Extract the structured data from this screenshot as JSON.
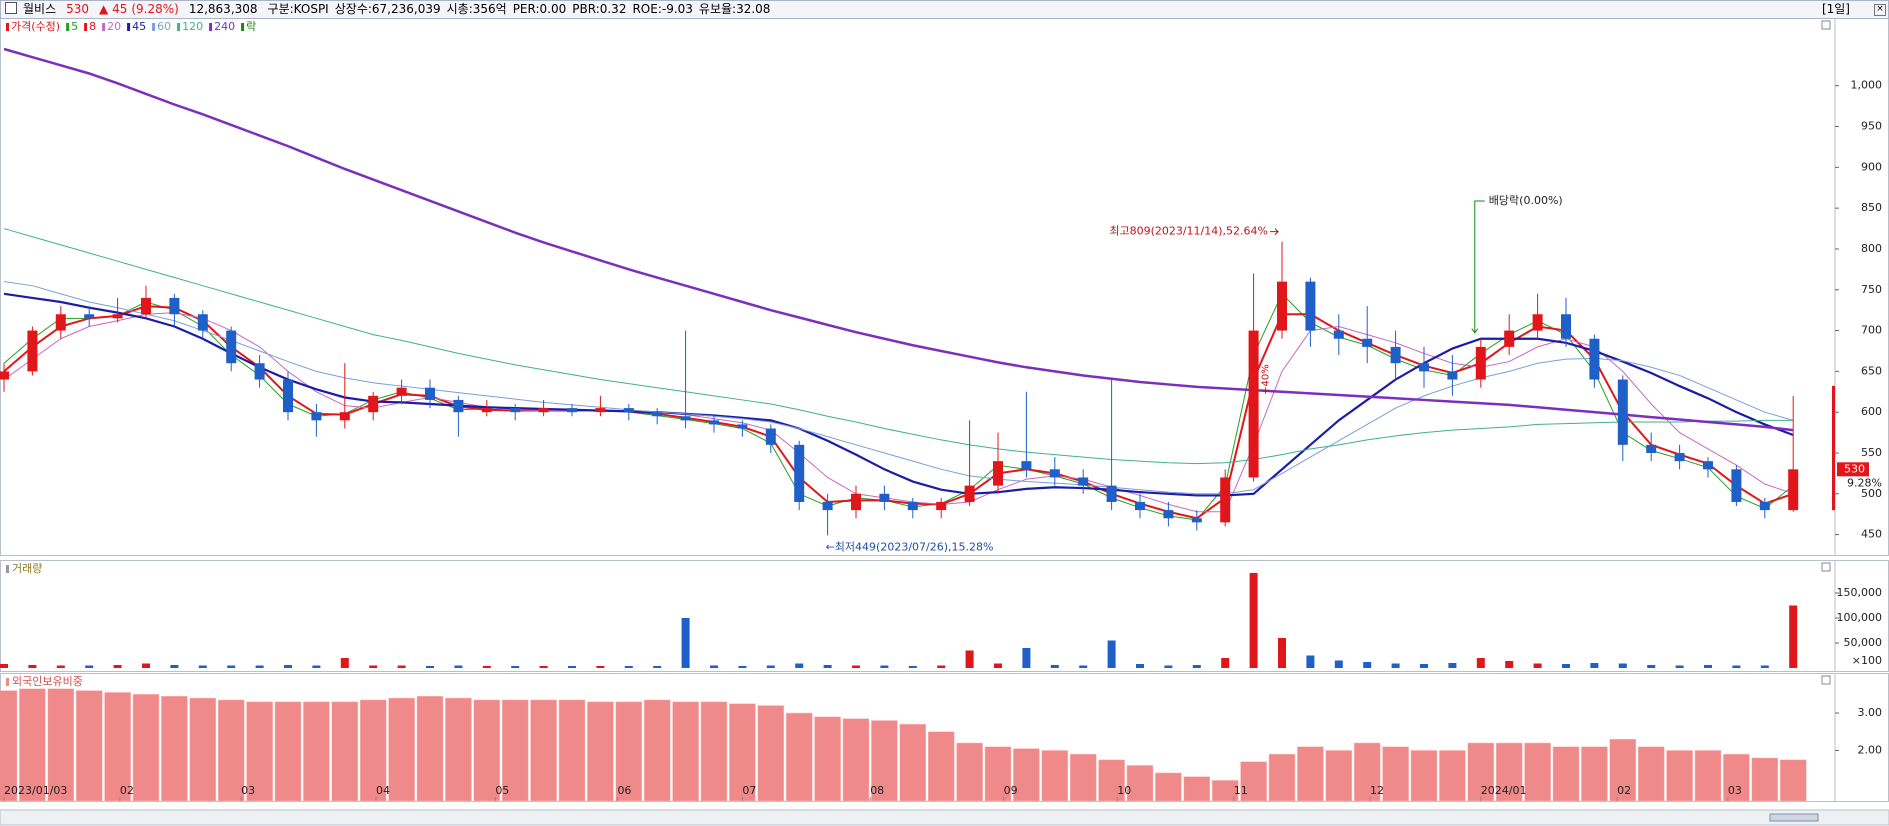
{
  "header": {
    "name": "월비스",
    "price": "530",
    "change": "▲ 45",
    "rate": "(9.28%)",
    "volume": "12,863,308",
    "fields": [
      "구분:KOSPI",
      "상장수:67,236,039",
      "시총:356억",
      "PER:0.00",
      "PBR:0.32",
      "ROE:-9.03",
      "유보율:32.08"
    ],
    "period": "[1일]"
  },
  "chart_data": [
    {
      "type": "candlestick",
      "legend_title": "가격(수정)",
      "up_color": "#e0161b",
      "down_color": "#1f5fc8",
      "ohlc": [
        [
          640,
          660,
          625,
          650
        ],
        [
          650,
          705,
          645,
          700
        ],
        [
          700,
          730,
          690,
          720
        ],
        [
          720,
          730,
          705,
          715
        ],
        [
          715,
          740,
          710,
          720
        ],
        [
          720,
          755,
          715,
          740
        ],
        [
          740,
          745,
          705,
          720
        ],
        [
          720,
          725,
          690,
          700
        ],
        [
          700,
          705,
          650,
          660
        ],
        [
          660,
          670,
          630,
          640
        ],
        [
          640,
          650,
          590,
          600
        ],
        [
          600,
          610,
          570,
          590
        ],
        [
          590,
          660,
          580,
          600
        ],
        [
          600,
          625,
          590,
          620
        ],
        [
          620,
          640,
          610,
          630
        ],
        [
          630,
          640,
          605,
          615
        ],
        [
          615,
          620,
          570,
          600
        ],
        [
          600,
          615,
          595,
          605
        ],
        [
          605,
          610,
          590,
          600
        ],
        [
          600,
          615,
          595,
          605
        ],
        [
          605,
          610,
          595,
          600
        ],
        [
          600,
          620,
          595,
          605
        ],
        [
          605,
          610,
          590,
          600
        ],
        [
          600,
          605,
          585,
          595
        ],
        [
          595,
          700,
          580,
          590
        ],
        [
          590,
          595,
          575,
          585
        ],
        [
          585,
          590,
          570,
          580
        ],
        [
          580,
          585,
          550,
          560
        ],
        [
          560,
          565,
          480,
          490
        ],
        [
          490,
          500,
          449,
          480
        ],
        [
          480,
          510,
          470,
          500
        ],
        [
          500,
          510,
          480,
          490
        ],
        [
          490,
          495,
          470,
          480
        ],
        [
          480,
          495,
          470,
          490
        ],
        [
          490,
          590,
          485,
          510
        ],
        [
          510,
          575,
          500,
          540
        ],
        [
          540,
          625,
          520,
          530
        ],
        [
          530,
          545,
          510,
          520
        ],
        [
          520,
          530,
          500,
          510
        ],
        [
          510,
          640,
          480,
          490
        ],
        [
          490,
          500,
          470,
          480
        ],
        [
          480,
          490,
          460,
          470
        ],
        [
          470,
          480,
          455,
          465
        ],
        [
          465,
          530,
          460,
          520
        ],
        [
          520,
          770,
          515,
          700
        ],
        [
          700,
          809,
          690,
          760
        ],
        [
          760,
          765,
          680,
          700
        ],
        [
          700,
          720,
          670,
          690
        ],
        [
          690,
          730,
          660,
          680
        ],
        [
          680,
          700,
          640,
          660
        ],
        [
          660,
          680,
          630,
          650
        ],
        [
          650,
          670,
          620,
          640
        ],
        [
          640,
          690,
          630,
          680
        ],
        [
          680,
          720,
          670,
          700
        ],
        [
          700,
          745,
          690,
          720
        ],
        [
          720,
          740,
          680,
          690
        ],
        [
          690,
          695,
          630,
          640
        ],
        [
          640,
          645,
          540,
          560
        ],
        [
          560,
          575,
          540,
          550
        ],
        [
          550,
          560,
          530,
          540
        ],
        [
          540,
          545,
          520,
          530
        ],
        [
          530,
          535,
          485,
          490
        ],
        [
          490,
          495,
          470,
          480
        ],
        [
          480,
          620,
          478,
          530
        ]
      ],
      "series": [
        {
          "name": "5",
          "color": "#22a022",
          "width": 1,
          "values": [
            660,
            690,
            715,
            715,
            718,
            735,
            725,
            705,
            670,
            645,
            610,
            595,
            598,
            615,
            625,
            617,
            603,
            604,
            601,
            603,
            601,
            603,
            600,
            596,
            591,
            586,
            580,
            562,
            500,
            485,
            495,
            492,
            484,
            488,
            505,
            535,
            530,
            522,
            512,
            495,
            483,
            473,
            468,
            510,
            670,
            745,
            710,
            692,
            682,
            665,
            652,
            645,
            672,
            695,
            712,
            695,
            650,
            575,
            553,
            543,
            532,
            497,
            482,
            510
          ]
        },
        {
          "name": "8",
          "color": "#e0161b",
          "width": 2,
          "values": [
            650,
            680,
            705,
            715,
            718,
            730,
            728,
            712,
            680,
            655,
            620,
            598,
            597,
            610,
            622,
            620,
            607,
            603,
            602,
            602,
            602,
            602,
            601,
            598,
            593,
            588,
            582,
            570,
            520,
            490,
            492,
            492,
            488,
            487,
            500,
            525,
            530,
            525,
            515,
            500,
            488,
            478,
            470,
            495,
            640,
            720,
            720,
            700,
            685,
            670,
            657,
            648,
            660,
            685,
            705,
            700,
            665,
            600,
            560,
            548,
            537,
            510,
            488,
            500
          ]
        },
        {
          "name": "20",
          "color": "#c868c0",
          "width": 1,
          "values": [
            640,
            665,
            690,
            705,
            712,
            720,
            722,
            715,
            700,
            680,
            650,
            625,
            608,
            605,
            612,
            618,
            612,
            606,
            603,
            602,
            602,
            601,
            601,
            600,
            597,
            592,
            587,
            578,
            550,
            520,
            500,
            495,
            490,
            487,
            490,
            505,
            518,
            522,
            518,
            508,
            498,
            487,
            478,
            478,
            560,
            650,
            700,
            705,
            695,
            685,
            672,
            660,
            655,
            662,
            680,
            690,
            680,
            650,
            610,
            575,
            555,
            535,
            512,
            500
          ]
        },
        {
          "name": "45",
          "color": "#1c1ca8",
          "width": 2.2,
          "values": [
            745,
            740,
            735,
            728,
            722,
            715,
            705,
            690,
            672,
            655,
            640,
            628,
            618,
            613,
            612,
            610,
            608,
            606,
            605,
            604,
            603,
            602,
            601,
            600,
            598,
            596,
            593,
            590,
            580,
            565,
            548,
            530,
            515,
            505,
            500,
            502,
            506,
            508,
            507,
            505,
            502,
            500,
            498,
            498,
            500,
            530,
            560,
            590,
            615,
            640,
            660,
            678,
            690,
            690,
            690,
            685,
            675,
            662,
            648,
            632,
            617,
            600,
            585,
            572
          ]
        },
        {
          "name": "60",
          "color": "#7a9ed8",
          "width": 1,
          "values": [
            760,
            755,
            745,
            735,
            728,
            720,
            712,
            700,
            688,
            675,
            662,
            650,
            642,
            636,
            632,
            628,
            624,
            620,
            616,
            612,
            609,
            606,
            603,
            600,
            598,
            595,
            592,
            588,
            580,
            570,
            560,
            550,
            540,
            530,
            522,
            518,
            515,
            513,
            511,
            508,
            505,
            502,
            500,
            500,
            505,
            525,
            545,
            565,
            585,
            605,
            620,
            632,
            642,
            650,
            660,
            665,
            666,
            663,
            655,
            645,
            630,
            615,
            600,
            590
          ]
        },
        {
          "name": "120",
          "color": "#40b090",
          "width": 1,
          "values": [
            825,
            815,
            805,
            795,
            785,
            775,
            765,
            755,
            745,
            735,
            725,
            715,
            705,
            695,
            688,
            680,
            672,
            665,
            658,
            652,
            646,
            640,
            635,
            630,
            625,
            620,
            615,
            610,
            603,
            595,
            588,
            580,
            573,
            566,
            560,
            555,
            551,
            548,
            545,
            542,
            540,
            538,
            537,
            538,
            542,
            548,
            555,
            560,
            566,
            571,
            575,
            578,
            580,
            582,
            585,
            586,
            587,
            588,
            588,
            588,
            589,
            589,
            590,
            590
          ]
        },
        {
          "name": "240",
          "color": "#7b2fbf",
          "width": 2.5,
          "values": [
            1045,
            1035,
            1025,
            1015,
            1003,
            990,
            977,
            965,
            952,
            939,
            926,
            912,
            898,
            885,
            872,
            859,
            846,
            833,
            820,
            808,
            797,
            786,
            775,
            765,
            755,
            745,
            735,
            725,
            716,
            707,
            698,
            690,
            682,
            675,
            668,
            661,
            655,
            650,
            645,
            641,
            637,
            634,
            631,
            629,
            627,
            625,
            623,
            621,
            619,
            617,
            615,
            613,
            611,
            609,
            606,
            603,
            600,
            597,
            594,
            591,
            588,
            585,
            582,
            578
          ]
        }
      ],
      "extra_legend": {
        "name": "락",
        "color": "#138a13"
      },
      "ylim": [
        425,
        1083
      ],
      "yticks": [
        450,
        500,
        550,
        600,
        650,
        700,
        750,
        800,
        850,
        900,
        950,
        {
          "value": 1000,
          "label": "1,000"
        }
      ],
      "annotations": {
        "high": "최고809(2023/11/14),52.64%",
        "low": "←최저449(2023/07/26),15.28%",
        "dividend": "배당락(0.00%)",
        "jump": "+40%"
      },
      "last_change_label": "9.28%"
    },
    {
      "type": "bar",
      "title": "거래량",
      "unit_label": "×100",
      "color_up": "#e0161b",
      "color_down": "#1f5fc8",
      "values": [
        8000,
        6000,
        5000,
        5000,
        6000,
        9000,
        6000,
        5000,
        5000,
        5000,
        6000,
        5000,
        20000,
        5000,
        5000,
        4000,
        5000,
        4000,
        4000,
        4000,
        4000,
        4000,
        4000,
        4000,
        100000,
        5000,
        4000,
        5000,
        9000,
        6000,
        5000,
        5000,
        4000,
        5000,
        35000,
        9000,
        40000,
        6000,
        5000,
        55000,
        8000,
        5000,
        6000,
        20000,
        190000,
        60000,
        25000,
        15000,
        12000,
        9000,
        8000,
        10000,
        20000,
        14000,
        9000,
        8000,
        10000,
        9000,
        6000,
        5000,
        6000,
        5000,
        5000,
        125000
      ],
      "ylim": [
        -6000,
        216000
      ],
      "yticks": [
        {
          "value": 50000,
          "label": "50,000"
        },
        {
          "value": 100000,
          "label": "100,000"
        },
        {
          "value": 150000,
          "label": "150,000"
        }
      ]
    },
    {
      "type": "bar",
      "title": "외국인보유비중",
      "color": "#f08a8a",
      "values": [
        3.6,
        3.65,
        3.65,
        3.6,
        3.55,
        3.5,
        3.45,
        3.4,
        3.35,
        3.3,
        3.3,
        3.3,
        3.3,
        3.35,
        3.4,
        3.45,
        3.4,
        3.35,
        3.35,
        3.35,
        3.35,
        3.3,
        3.3,
        3.35,
        3.3,
        3.3,
        3.25,
        3.2,
        3.0,
        2.9,
        2.85,
        2.8,
        2.7,
        2.5,
        2.2,
        2.1,
        2.05,
        2.0,
        1.9,
        1.75,
        1.6,
        1.4,
        1.3,
        1.2,
        1.7,
        1.9,
        2.1,
        2.0,
        2.2,
        2.1,
        2.0,
        2.0,
        2.2,
        2.2,
        2.2,
        2.1,
        2.1,
        2.3,
        2.1,
        2.0,
        2.0,
        1.9,
        1.8,
        1.75
      ],
      "ylim": [
        0.65,
        4.07
      ],
      "yticks": [
        {
          "value": 2,
          "label": "2.00"
        },
        {
          "value": 3,
          "label": "3.00"
        }
      ],
      "xticks": [
        {
          "value": 0,
          "label": "2023/01/03"
        },
        {
          "value": 4.08,
          "label": "02"
        },
        {
          "value": 8.35,
          "label": "03"
        },
        {
          "value": 13.1,
          "label": "04"
        },
        {
          "value": 17.3,
          "label": "05"
        },
        {
          "value": 21.6,
          "label": "06"
        },
        {
          "value": 26.0,
          "label": "07"
        },
        {
          "value": 30.5,
          "label": "08"
        },
        {
          "value": 35.2,
          "label": "09"
        },
        {
          "value": 39.2,
          "label": "10"
        },
        {
          "value": 43.3,
          "label": "11"
        },
        {
          "value": 48.1,
          "label": "12"
        },
        {
          "value": 52.0,
          "label": "2024/01"
        },
        {
          "value": 56.8,
          "label": "02"
        },
        {
          "value": 60.7,
          "label": "03"
        }
      ]
    }
  ]
}
